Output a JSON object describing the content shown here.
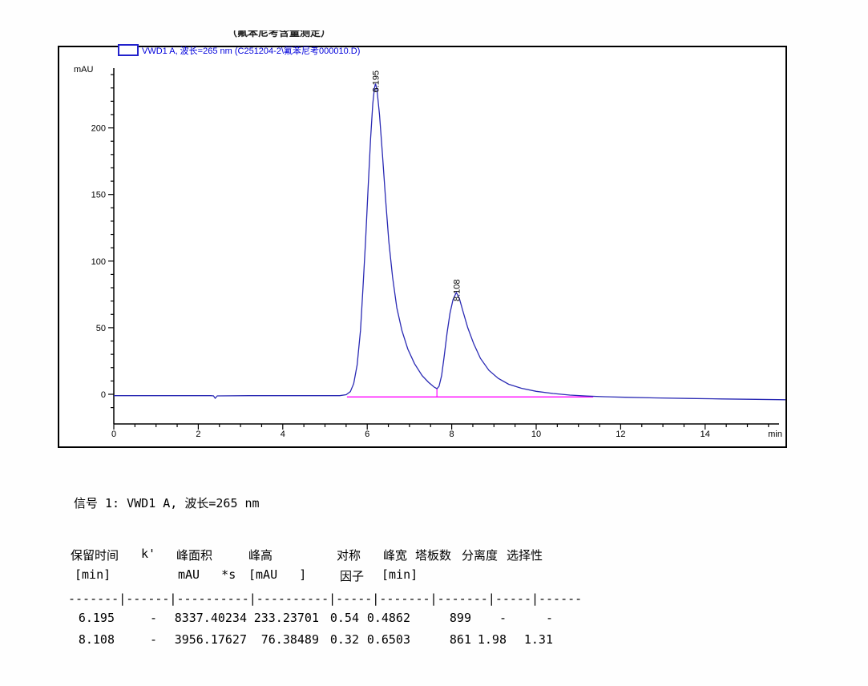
{
  "page": {
    "clipped_title": "（氟苯尼考含量测定）"
  },
  "chart": {
    "legend": {
      "swatch_color": "#2222cc",
      "label": "VWD1 A, 波长=265 nm (C251204-2\\氟苯尼考000010.D)"
    }
  },
  "chart_data": {
    "type": "line",
    "title": "VWD1 A, 波长=265 nm (C251204-2\\氟苯尼考000010.D)",
    "xlabel": "min",
    "ylabel": "mAU",
    "xlim": [
      0,
      15.9
    ],
    "ylim": [
      -15,
      243
    ],
    "x_major_ticks": [
      0,
      2,
      4,
      6,
      8,
      10,
      12,
      14
    ],
    "x_minor_step": 0.5,
    "y_major_ticks": [
      0,
      50,
      100,
      150,
      200
    ],
    "y_minor_step": 10,
    "grid": false,
    "legend_position": "top-left",
    "trace_color": "#2a2ab4",
    "baseline_color": "#ff00ff",
    "axis_color": "#000000",
    "peaks": [
      {
        "label": "6.195",
        "rt": 6.195,
        "height": 233.23701
      },
      {
        "label": "8.108",
        "rt": 8.108,
        "height": 76.38489
      }
    ],
    "integration_baseline": {
      "t_start": 5.52,
      "t_end": 11.35,
      "level": -2,
      "valley_t": 7.65,
      "valley_top": 4.5
    },
    "trace": [
      [
        0,
        -1
      ],
      [
        1.2,
        -1
      ],
      [
        2.3,
        -1
      ],
      [
        2.36,
        -1.2
      ],
      [
        2.4,
        -3
      ],
      [
        2.45,
        -1.2
      ],
      [
        3.2,
        -1
      ],
      [
        4.2,
        -1
      ],
      [
        5.0,
        -1
      ],
      [
        5.35,
        -1
      ],
      [
        5.5,
        -0.3
      ],
      [
        5.6,
        2
      ],
      [
        5.68,
        8
      ],
      [
        5.76,
        22
      ],
      [
        5.84,
        48
      ],
      [
        5.9,
        80
      ],
      [
        5.96,
        115
      ],
      [
        6.02,
        155
      ],
      [
        6.08,
        192
      ],
      [
        6.13,
        218
      ],
      [
        6.17,
        230
      ],
      [
        6.195,
        233.2
      ],
      [
        6.23,
        229
      ],
      [
        6.29,
        210
      ],
      [
        6.36,
        180
      ],
      [
        6.43,
        148
      ],
      [
        6.51,
        115
      ],
      [
        6.6,
        88
      ],
      [
        6.7,
        65
      ],
      [
        6.82,
        48
      ],
      [
        6.96,
        34
      ],
      [
        7.12,
        23
      ],
      [
        7.3,
        14
      ],
      [
        7.45,
        9
      ],
      [
        7.58,
        5.5
      ],
      [
        7.65,
        4.2
      ],
      [
        7.7,
        6
      ],
      [
        7.76,
        14
      ],
      [
        7.82,
        28
      ],
      [
        7.89,
        46
      ],
      [
        7.96,
        61
      ],
      [
        8.03,
        71
      ],
      [
        8.108,
        76.4
      ],
      [
        8.18,
        72
      ],
      [
        8.27,
        62
      ],
      [
        8.38,
        50
      ],
      [
        8.52,
        38
      ],
      [
        8.68,
        27
      ],
      [
        8.88,
        18
      ],
      [
        9.1,
        12
      ],
      [
        9.35,
        7.5
      ],
      [
        9.65,
        4.5
      ],
      [
        10.0,
        2.2
      ],
      [
        10.4,
        0.6
      ],
      [
        10.8,
        -0.6
      ],
      [
        11.2,
        -1.3
      ],
      [
        11.6,
        -1.8
      ],
      [
        12.1,
        -2.2
      ],
      [
        12.8,
        -2.7
      ],
      [
        13.6,
        -3.1
      ],
      [
        14.4,
        -3.5
      ],
      [
        15.2,
        -3.8
      ],
      [
        15.9,
        -4.1
      ]
    ]
  },
  "signal_line": "信号 1: VWD1 A, 波长=265 nm",
  "table": {
    "headers_line1": [
      "保留时间",
      "k'",
      "峰面积",
      "峰高",
      "对称",
      "峰宽",
      "塔板数",
      "分离度",
      "选择性"
    ],
    "headers_line2": [
      "[min]",
      "",
      "mAU   *s",
      "[mAU   ]",
      "因子",
      "[min]",
      "",
      "",
      ""
    ],
    "separator": "-------|------|----------|----------|-----|-------|-------|-----|------",
    "rows": [
      [
        "6.195",
        "-",
        "8337.40234",
        "233.23701",
        "0.54",
        "0.4862",
        "899",
        "-",
        "-"
      ],
      [
        "8.108",
        "-",
        "3956.17627",
        "76.38489",
        "0.32",
        "0.6503",
        "861",
        "1.98",
        "1.31"
      ]
    ]
  }
}
